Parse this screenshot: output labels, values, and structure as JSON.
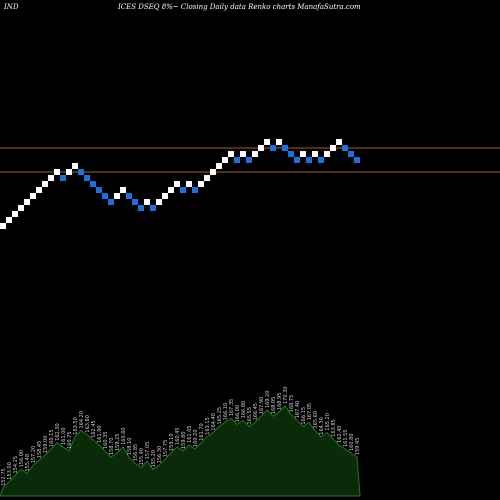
{
  "header": {
    "left": "IND",
    "center": "ICES DSEQ 8%~ Closing Daily data Renko charts ManafaSutra.com"
  },
  "chart_data": {
    "type": "renko",
    "brick_size": 1,
    "colors": {
      "background": "#000000",
      "up_brick": "#ffffff",
      "down_brick": "#1e6fd9",
      "reference_line": "#a0601a",
      "volume_fill": "#0a2a0a",
      "volume_line": "#1f7a1f",
      "volume_label": "#d0d0d0"
    },
    "reference_lines": [
      14,
      10
    ],
    "bricks": [
      {
        "dir": "up",
        "level": 1
      },
      {
        "dir": "up",
        "level": 2
      },
      {
        "dir": "up",
        "level": 3
      },
      {
        "dir": "up",
        "level": 4
      },
      {
        "dir": "up",
        "level": 5
      },
      {
        "dir": "up",
        "level": 6
      },
      {
        "dir": "up",
        "level": 7
      },
      {
        "dir": "up",
        "level": 8
      },
      {
        "dir": "up",
        "level": 9
      },
      {
        "dir": "up",
        "level": 10
      },
      {
        "dir": "down",
        "level": 9
      },
      {
        "dir": "up",
        "level": 10
      },
      {
        "dir": "up",
        "level": 11
      },
      {
        "dir": "down",
        "level": 10
      },
      {
        "dir": "down",
        "level": 9
      },
      {
        "dir": "down",
        "level": 8
      },
      {
        "dir": "down",
        "level": 7
      },
      {
        "dir": "down",
        "level": 6
      },
      {
        "dir": "down",
        "level": 5
      },
      {
        "dir": "up",
        "level": 6
      },
      {
        "dir": "up",
        "level": 7
      },
      {
        "dir": "down",
        "level": 6
      },
      {
        "dir": "down",
        "level": 5
      },
      {
        "dir": "down",
        "level": 4
      },
      {
        "dir": "up",
        "level": 5
      },
      {
        "dir": "down",
        "level": 4
      },
      {
        "dir": "up",
        "level": 5
      },
      {
        "dir": "up",
        "level": 6
      },
      {
        "dir": "up",
        "level": 7
      },
      {
        "dir": "up",
        "level": 8
      },
      {
        "dir": "down",
        "level": 7
      },
      {
        "dir": "up",
        "level": 8
      },
      {
        "dir": "down",
        "level": 7
      },
      {
        "dir": "up",
        "level": 8
      },
      {
        "dir": "up",
        "level": 9
      },
      {
        "dir": "up",
        "level": 10
      },
      {
        "dir": "up",
        "level": 11
      },
      {
        "dir": "up",
        "level": 12
      },
      {
        "dir": "up",
        "level": 13
      },
      {
        "dir": "down",
        "level": 12
      },
      {
        "dir": "up",
        "level": 13
      },
      {
        "dir": "down",
        "level": 12
      },
      {
        "dir": "up",
        "level": 13
      },
      {
        "dir": "up",
        "level": 14
      },
      {
        "dir": "up",
        "level": 15
      },
      {
        "dir": "down",
        "level": 14
      },
      {
        "dir": "up",
        "level": 15
      },
      {
        "dir": "down",
        "level": 14
      },
      {
        "dir": "down",
        "level": 13
      },
      {
        "dir": "down",
        "level": 12
      },
      {
        "dir": "up",
        "level": 13
      },
      {
        "dir": "down",
        "level": 12
      },
      {
        "dir": "up",
        "level": 13
      },
      {
        "dir": "down",
        "level": 12
      },
      {
        "dir": "up",
        "level": 13
      },
      {
        "dir": "up",
        "level": 14
      },
      {
        "dir": "up",
        "level": 15
      },
      {
        "dir": "down",
        "level": 14
      },
      {
        "dir": "down",
        "level": 13
      },
      {
        "dir": "down",
        "level": 12
      }
    ],
    "volume": {
      "values": [
        8,
        14,
        20,
        26,
        22,
        30,
        35,
        40,
        46,
        52,
        48,
        44,
        58,
        64,
        60,
        55,
        50,
        44,
        38,
        42,
        48,
        38,
        32,
        28,
        34,
        26,
        30,
        36,
        42,
        48,
        44,
        50,
        46,
        52,
        58,
        62,
        68,
        72,
        76,
        70,
        74,
        68,
        72,
        78,
        84,
        78,
        82,
        88,
        80,
        74,
        68,
        72,
        64,
        58,
        62,
        56,
        50,
        46,
        42,
        38
      ],
      "labels": [
        "152.75",
        "153.00",
        "154.25",
        "156.00",
        "155.48",
        "157.20",
        "158.45",
        "159.00",
        "160.15",
        "162.30",
        "161.00",
        "160.75",
        "163.50",
        "164.20",
        "163.80",
        "162.45",
        "161.90",
        "160.35",
        "158.70",
        "159.25",
        "160.60",
        "158.10",
        "156.85",
        "155.40",
        "157.05",
        "155.20",
        "156.30",
        "157.75",
        "159.10",
        "160.45",
        "159.80",
        "161.05",
        "160.20",
        "161.70",
        "163.15",
        "164.40",
        "165.25",
        "166.10",
        "167.35",
        "166.00",
        "166.80",
        "165.55",
        "166.45",
        "167.90",
        "169.20",
        "168.05",
        "168.95",
        "170.30",
        "168.75",
        "167.40",
        "166.15",
        "167.05",
        "165.60",
        "164.30",
        "165.20",
        "163.85",
        "162.40",
        "161.55",
        "160.80",
        "159.45"
      ]
    }
  }
}
